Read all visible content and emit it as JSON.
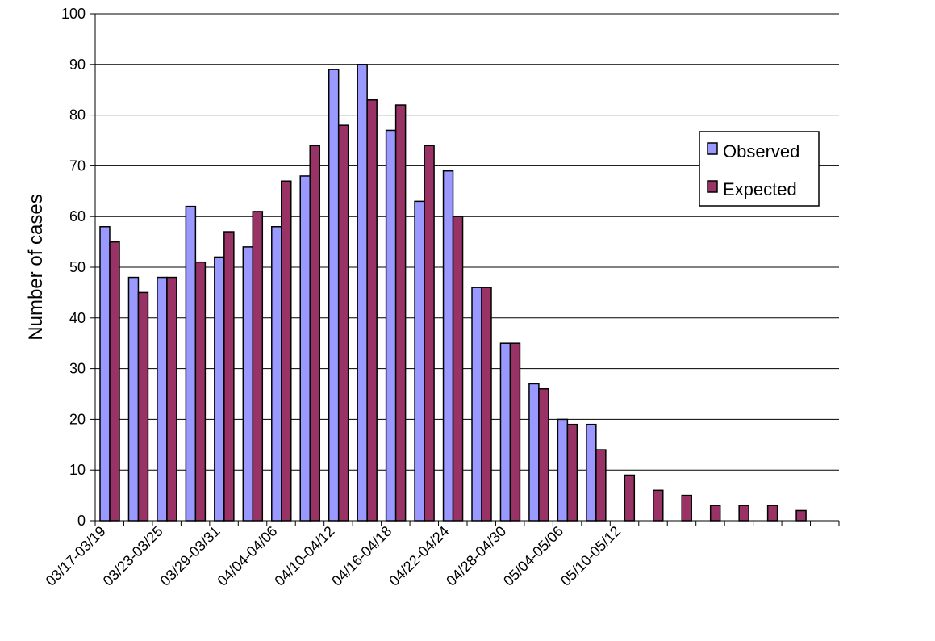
{
  "chart_data": {
    "type": "bar",
    "y_label": "Number of cases",
    "categories": [
      "03/17-03/19",
      null,
      "03/23-03/25",
      null,
      "03/29-03/31",
      null,
      "04/04-04/06",
      null,
      "04/10-04/12",
      null,
      "04/16-04/18",
      null,
      "04/22-04/24",
      null,
      "04/28-04/30",
      null,
      "05/04-05/06",
      null,
      "05/10-05/12",
      null,
      null,
      null,
      null,
      null,
      null,
      null
    ],
    "series": [
      {
        "name": "Observed",
        "color": "#9999ff",
        "values": [
          58,
          48,
          48,
          62,
          52,
          54,
          58,
          68,
          89,
          90,
          77,
          63,
          69,
          46,
          35,
          27,
          20,
          19,
          null,
          null,
          null,
          null,
          null,
          null,
          null,
          null
        ]
      },
      {
        "name": "Expected",
        "color": "#993366",
        "values": [
          55,
          45,
          48,
          51,
          57,
          61,
          67,
          74,
          78,
          83,
          82,
          74,
          60,
          46,
          35,
          26,
          19,
          14,
          9,
          6,
          5,
          3,
          3,
          3,
          2,
          null
        ]
      }
    ],
    "ylim": [
      0,
      100
    ],
    "yticks": [
      0,
      10,
      20,
      30,
      40,
      50,
      60,
      70,
      80,
      90,
      100
    ],
    "grid": true,
    "legend": "right"
  }
}
